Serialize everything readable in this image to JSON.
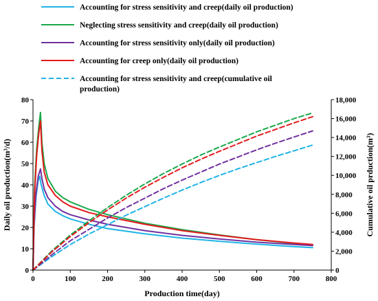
{
  "chart_data": {
    "type": "line",
    "xlabel": "Production time(day)",
    "ylabel_left": "Daily oil production(m³/d)",
    "ylabel_right": "Cumulative oil prduction(m³)",
    "xlim": [
      0,
      800
    ],
    "ylim_left": [
      0,
      80
    ],
    "ylim_right": [
      0,
      18000
    ],
    "x_ticks": [
      0,
      100,
      200,
      300,
      400,
      500,
      600,
      700,
      800
    ],
    "x_tick_labels": [
      "0",
      "100",
      "200",
      "300",
      "400",
      "500",
      "600",
      "700",
      "800"
    ],
    "y_left_ticks": [
      0,
      10,
      20,
      30,
      40,
      50,
      60,
      70,
      80
    ],
    "y_left_tick_labels": [
      "0",
      "10",
      "20",
      "30",
      "40",
      "50",
      "60",
      "70",
      "80"
    ],
    "y_right_ticks": [
      0,
      2000,
      4000,
      6000,
      8000,
      10000,
      12000,
      14000,
      16000,
      18000
    ],
    "y_right_tick_labels": [
      "0",
      "2,000",
      "4,000",
      "6,000",
      "8,000",
      "10,000",
      "12,000",
      "14,000",
      "16,000",
      "18,000"
    ],
    "grid": false,
    "legend_position": "top",
    "series": [
      {
        "name": "Accounting for stress sensitivity and creep(daily oil production)",
        "axis": "left",
        "style": "solid",
        "color": "#1fb3e6",
        "x": [
          0,
          3,
          8,
          14,
          18,
          22,
          30,
          40,
          60,
          80,
          100,
          150,
          200,
          300,
          400,
          500,
          600,
          700,
          750
        ],
        "y": [
          0,
          20,
          34,
          42,
          44,
          40,
          35,
          31,
          27.5,
          25.5,
          24,
          21.5,
          19.5,
          17,
          15,
          13.5,
          12.2,
          11,
          10.5
        ]
      },
      {
        "name": "Neglecting stress sensitivity and creep(daily oil production)",
        "axis": "left",
        "style": "solid",
        "color": "#1aa84a",
        "x": [
          0,
          4,
          10,
          16,
          20,
          24,
          30,
          40,
          60,
          80,
          100,
          150,
          200,
          300,
          400,
          500,
          600,
          700,
          750
        ],
        "y": [
          0,
          38,
          57,
          68,
          74,
          60,
          50,
          43,
          37,
          34,
          32,
          28.5,
          26,
          22,
          19,
          16.5,
          14.3,
          12.5,
          11.8
        ]
      },
      {
        "name": "Accounting for stress sensitivity only(daily oil production)",
        "axis": "left",
        "style": "solid",
        "color": "#7030a0",
        "x": [
          0,
          3,
          8,
          14,
          20,
          24,
          30,
          40,
          60,
          80,
          100,
          150,
          200,
          300,
          400,
          500,
          600,
          700,
          750
        ],
        "y": [
          0,
          22,
          36,
          44,
          47.5,
          43,
          38,
          34,
          30,
          27.5,
          26,
          23.5,
          21.5,
          18.5,
          16.3,
          14.6,
          13.1,
          12,
          11.5
        ]
      },
      {
        "name": "Accounting for creep only(daily oil production)",
        "axis": "left",
        "style": "solid",
        "color": "#e31a1c",
        "x": [
          0,
          4,
          10,
          16,
          20,
          24,
          30,
          40,
          60,
          80,
          100,
          150,
          200,
          300,
          400,
          500,
          600,
          700,
          750
        ],
        "y": [
          0,
          35,
          54,
          65,
          70,
          56,
          46,
          40,
          35,
          32,
          30,
          27,
          25,
          21.5,
          18.5,
          16.3,
          14.3,
          12.7,
          12
        ]
      },
      {
        "name": "Accounting for stress sensitivity and creep(cumulative oil production)",
        "axis": "right",
        "style": "dashed",
        "color": "#1fb3e6",
        "x": [
          0,
          50,
          100,
          150,
          200,
          250,
          300,
          350,
          400,
          450,
          500,
          550,
          600,
          650,
          700,
          750
        ],
        "y": [
          0,
          1400,
          2700,
          3800,
          4800,
          5800,
          6700,
          7600,
          8450,
          9250,
          10000,
          10700,
          11350,
          12000,
          12600,
          13200
        ]
      },
      {
        "name": "",
        "axis": "right",
        "style": "dashed",
        "color": "#1aa84a",
        "x": [
          0,
          50,
          100,
          150,
          200,
          250,
          300,
          350,
          400,
          450,
          500,
          550,
          600,
          650,
          700,
          750
        ],
        "y": [
          0,
          2000,
          3700,
          5200,
          6600,
          7900,
          9100,
          10200,
          11200,
          12150,
          13000,
          13800,
          14600,
          15300,
          16000,
          16600
        ]
      },
      {
        "name": "",
        "axis": "right",
        "style": "dashed",
        "color": "#7030a0",
        "x": [
          0,
          50,
          100,
          150,
          200,
          250,
          300,
          350,
          400,
          450,
          500,
          550,
          600,
          650,
          700,
          750
        ],
        "y": [
          0,
          1600,
          3100,
          4300,
          5500,
          6600,
          7600,
          8600,
          9500,
          10350,
          11200,
          11950,
          12700,
          13400,
          14050,
          14700
        ]
      },
      {
        "name": "",
        "axis": "right",
        "style": "dashed",
        "color": "#e31a1c",
        "x": [
          0,
          50,
          100,
          150,
          200,
          250,
          300,
          350,
          400,
          450,
          500,
          550,
          600,
          650,
          700,
          750
        ],
        "y": [
          0,
          1900,
          3550,
          5000,
          6350,
          7600,
          8750,
          9800,
          10800,
          11700,
          12550,
          13350,
          14150,
          14850,
          15550,
          16200
        ]
      }
    ]
  },
  "legend": [
    {
      "label": "Accounting for stress sensitivity and creep(daily oil production)",
      "color": "#1fb3e6",
      "style": "solid"
    },
    {
      "label": "Neglecting stress sensitivity and creep(daily oil production)",
      "color": "#1aa84a",
      "style": "solid"
    },
    {
      "label": "Accounting for stress sensitivity only(daily oil production)",
      "color": "#7030a0",
      "style": "solid"
    },
    {
      "label": "Accounting for creep only(daily oil production)",
      "color": "#e31a1c",
      "style": "solid"
    },
    {
      "label_line1": "Accounting for stress sensitivity and creep(cumulative oil",
      "label_line2": "production)",
      "color": "#1fb3e6",
      "style": "dashed"
    }
  ]
}
